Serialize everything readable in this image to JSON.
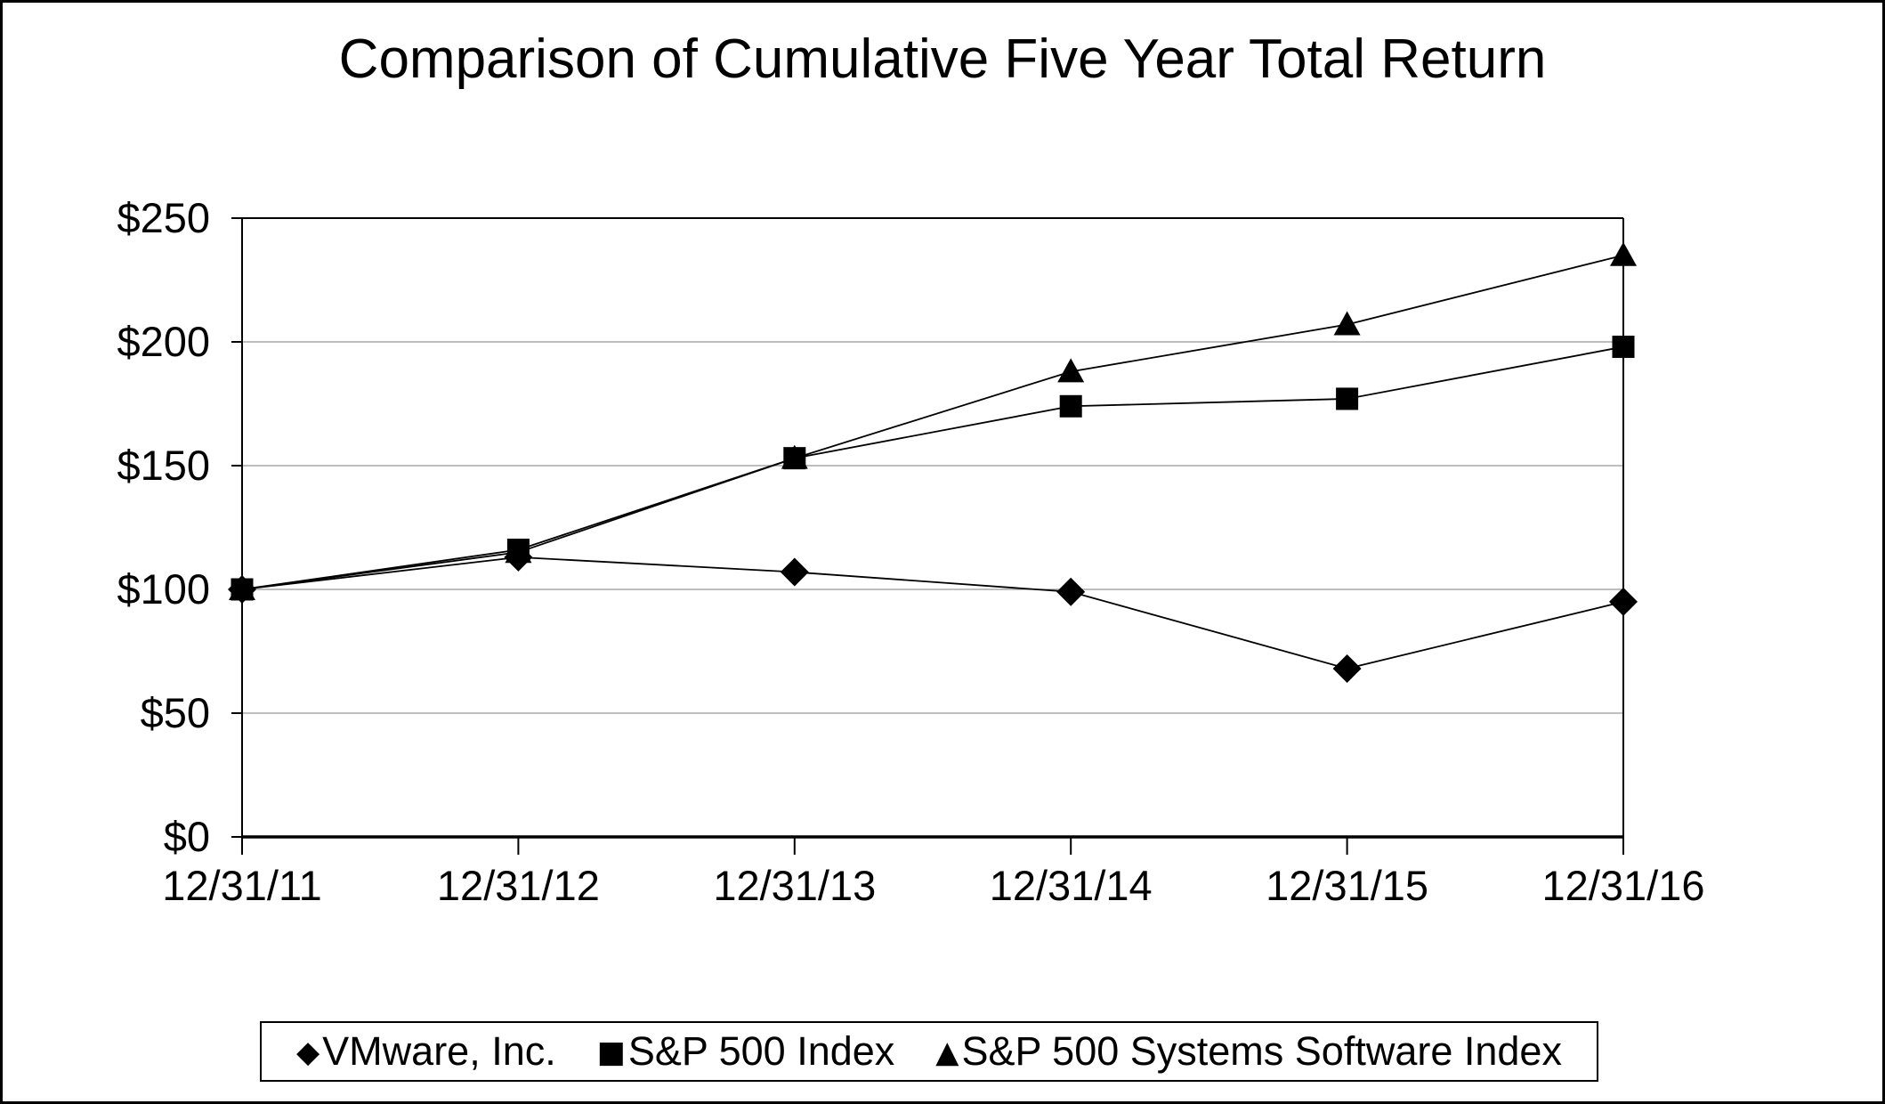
{
  "page": {
    "background_color": "#ffffff",
    "border_color": "#000000"
  },
  "chart_data": {
    "type": "line",
    "title": "Comparison of Cumulative Five Year Total Return",
    "categories": [
      "12/31/11",
      "12/31/12",
      "12/31/13",
      "12/31/14",
      "12/31/15",
      "12/31/16"
    ],
    "series": [
      {
        "name": "VMware, Inc.",
        "marker": "diamond",
        "values": [
          100,
          113,
          107,
          99,
          68,
          95
        ]
      },
      {
        "name": "S&P 500 Index",
        "marker": "square",
        "values": [
          100,
          116,
          153,
          174,
          177,
          198
        ]
      },
      {
        "name": "S&P 500 Systems Software Index",
        "marker": "triangle",
        "values": [
          100,
          115,
          153,
          188,
          207,
          235
        ]
      }
    ],
    "ylim": [
      0,
      250
    ],
    "y_ticks": [
      {
        "value": 0,
        "label": "$0"
      },
      {
        "value": 50,
        "label": "$50"
      },
      {
        "value": 100,
        "label": "$100"
      },
      {
        "value": 150,
        "label": "$150"
      },
      {
        "value": 200,
        "label": "$200"
      },
      {
        "value": 250,
        "label": "$250"
      }
    ],
    "grid": "horizontal-only",
    "legend_position": "bottom",
    "series_color": "#000000",
    "gridline_color": "#969696"
  },
  "legend": {
    "items": [
      {
        "glyph": "◆",
        "label": "VMware, Inc."
      },
      {
        "glyph": "■",
        "label": "S&P 500 Index"
      },
      {
        "glyph": "▲",
        "label": "S&P 500 Systems Software Index"
      }
    ]
  }
}
